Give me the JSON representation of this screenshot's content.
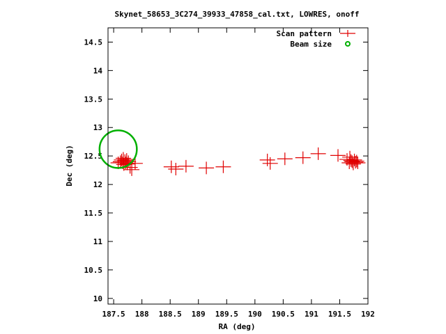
{
  "chart_data": {
    "type": "scatter",
    "title": "Skynet_58653_3C274_39933_47858_cal.txt, LOWRES, onoff",
    "xlabel": "RA (deg)",
    "ylabel": "Dec (deg)",
    "xlim": [
      187.4,
      192
    ],
    "ylim": [
      9.9,
      14.75
    ],
    "xticks": [
      187.5,
      188,
      188.5,
      189,
      189.5,
      190,
      190.5,
      191,
      191.5,
      192
    ],
    "xtick_labels": [
      "187.5",
      "188",
      "188.5",
      "189",
      "189.5",
      "190",
      "190.5",
      "191",
      "191.5",
      "192"
    ],
    "yticks": [
      10,
      10.5,
      11,
      11.5,
      12,
      12.5,
      13,
      13.5,
      14,
      14.5
    ],
    "ytick_labels": [
      "10",
      "10.5",
      "11",
      "11.5",
      "12",
      "12.5",
      "13",
      "13.5",
      "14",
      "14.5"
    ],
    "grid": false,
    "legend_position": "top-right",
    "series": [
      {
        "name": "Scan pattern",
        "marker": "plus",
        "color": "#e00000",
        "points": [
          [
            187.58,
            12.38
          ],
          [
            187.62,
            12.4
          ],
          [
            187.64,
            12.43
          ],
          [
            187.66,
            12.38
          ],
          [
            187.67,
            12.46
          ],
          [
            187.68,
            12.35
          ],
          [
            187.7,
            12.42
          ],
          [
            187.71,
            12.38
          ],
          [
            187.73,
            12.44
          ],
          [
            187.74,
            12.36
          ],
          [
            187.76,
            12.4
          ],
          [
            187.79,
            12.3
          ],
          [
            187.82,
            12.26
          ],
          [
            187.88,
            12.37
          ],
          [
            188.52,
            12.31
          ],
          [
            188.6,
            12.27
          ],
          [
            188.78,
            12.32
          ],
          [
            189.14,
            12.29
          ],
          [
            189.44,
            12.31
          ],
          [
            190.22,
            12.43
          ],
          [
            190.27,
            12.37
          ],
          [
            190.53,
            12.45
          ],
          [
            190.85,
            12.47
          ],
          [
            191.12,
            12.54
          ],
          [
            191.47,
            12.51
          ],
          [
            191.63,
            12.44
          ],
          [
            191.67,
            12.38
          ],
          [
            191.68,
            12.48
          ],
          [
            191.7,
            12.42
          ],
          [
            191.72,
            12.4
          ],
          [
            191.74,
            12.36
          ],
          [
            191.76,
            12.43
          ],
          [
            191.78,
            12.39
          ],
          [
            191.8,
            12.41
          ],
          [
            191.82,
            12.38
          ]
        ]
      },
      {
        "name": "Beam size",
        "marker": "circle",
        "color": "#00b000",
        "center": [
          187.58,
          12.62
        ],
        "radius": 0.33
      }
    ]
  }
}
